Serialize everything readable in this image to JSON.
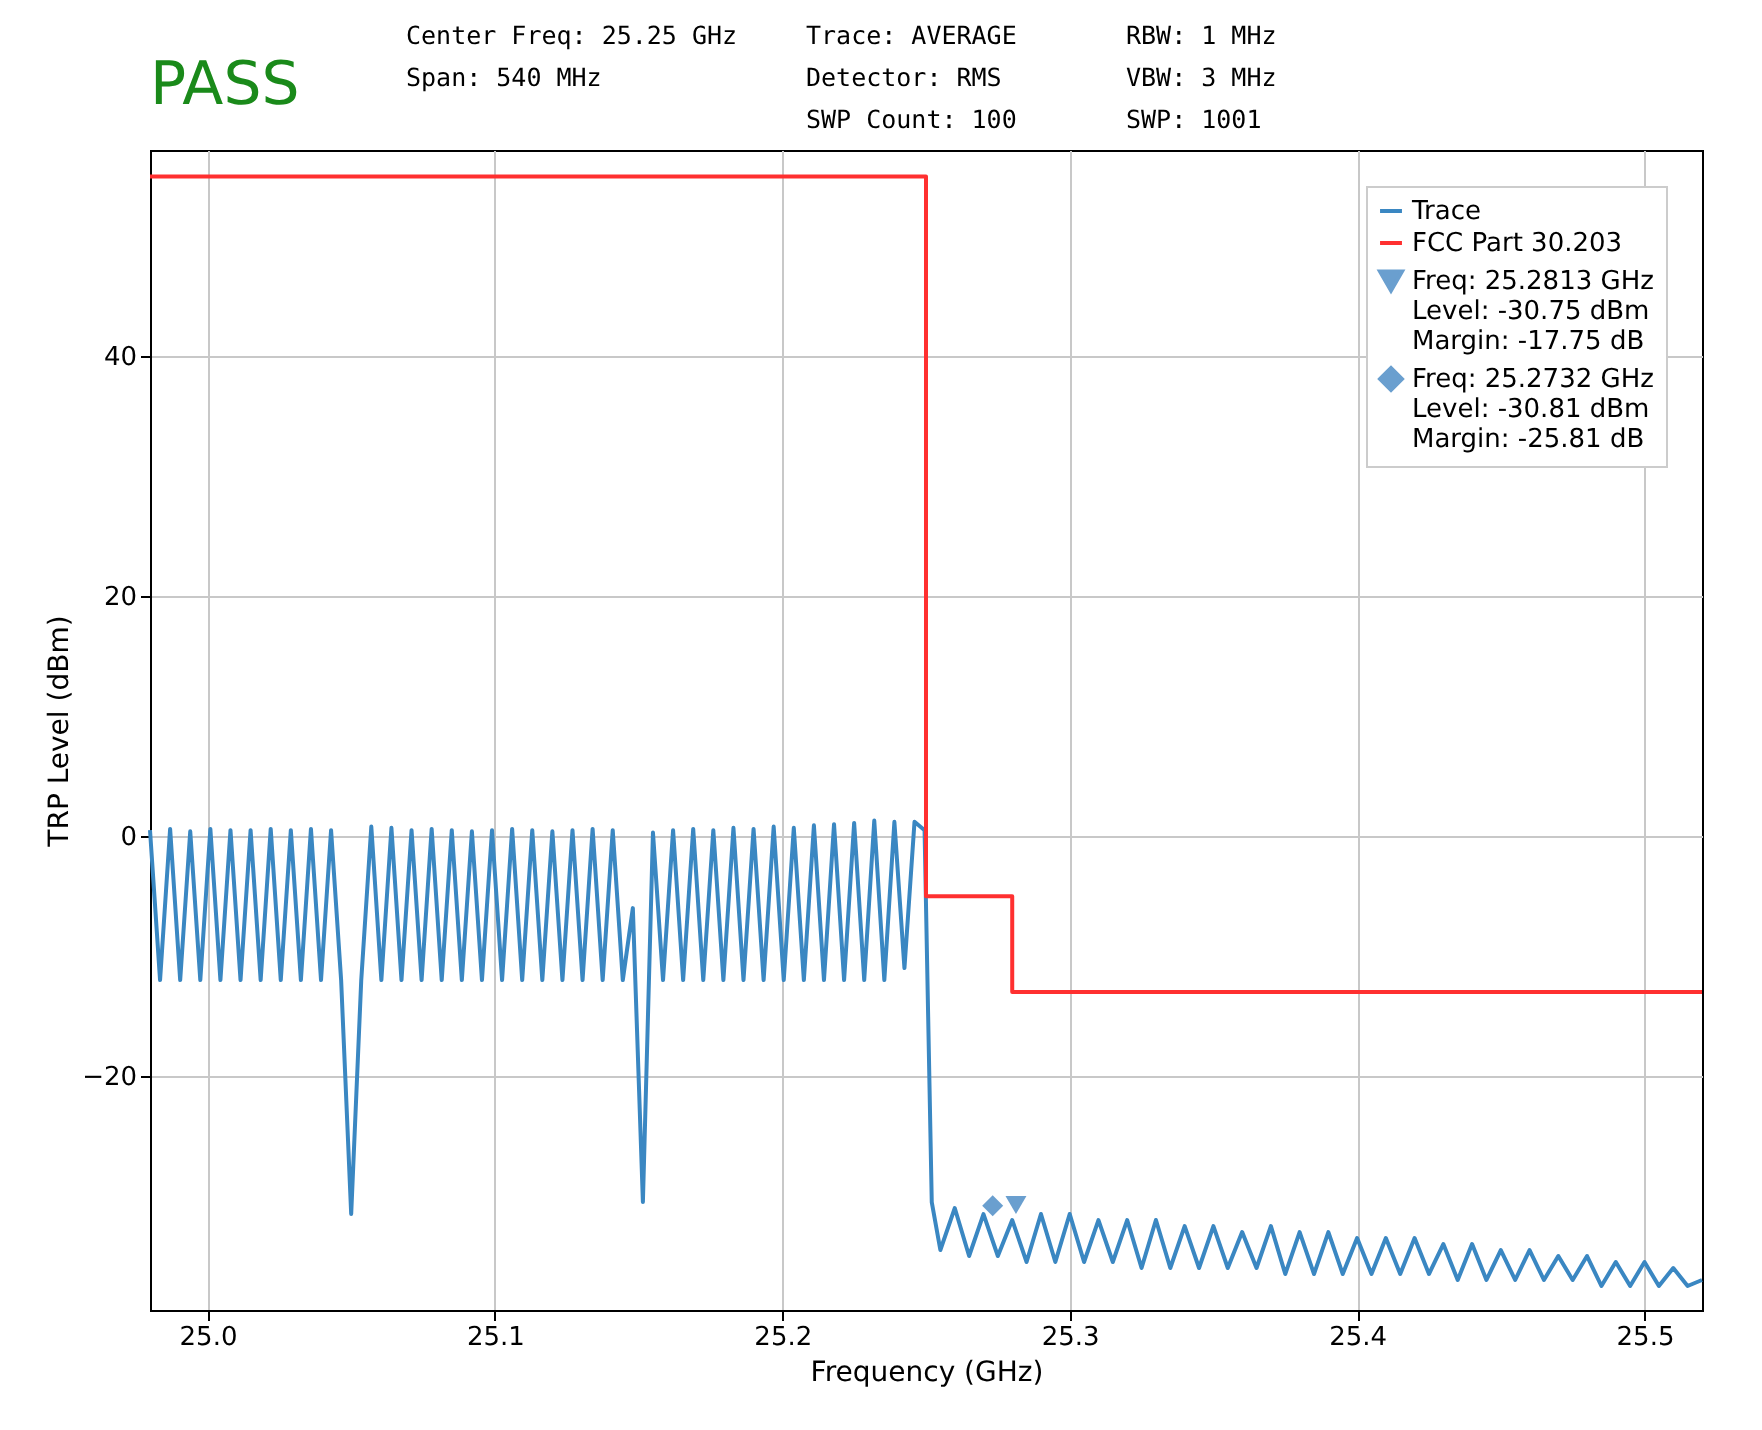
{
  "chart_data": {
    "type": "line",
    "xlabel": "Frequency (GHz)",
    "ylabel": "TRP Level (dBm)",
    "xlim": [
      24.98,
      25.52
    ],
    "ylim": [
      -39.5,
      57.2
    ],
    "xticks": [
      {
        "value": 25,
        "label": "25.0"
      },
      25.1,
      25.2,
      25.3,
      25.4,
      25.5
    ],
    "yticks": [
      {
        "value": -20,
        "label": "−20"
      },
      0,
      20,
      40
    ],
    "grid": true,
    "legend": "top right",
    "annotations": [
      "PASS",
      "Center Freq: 25.25 GHz",
      "Span: 540 MHz",
      "Trace: AVERAGE",
      "Detector: RMS",
      "SWP Count: 100",
      "RBW: 1 MHz",
      "VBW: 3 MHz",
      "SWP: 1001"
    ],
    "series": [
      {
        "name": "Trace",
        "color": "#3a87c2",
        "x": [
          24.98,
          24.9835,
          24.987,
          24.9905,
          24.994,
          24.9975,
          25.001,
          25.0045,
          25.008,
          25.0115,
          25.015,
          25.0185,
          25.022,
          25.0255,
          25.029,
          25.0325,
          25.036,
          25.0395,
          25.043,
          25.0465,
          25.05,
          25.0535,
          25.057,
          25.0605,
          25.064,
          25.0675,
          25.071,
          25.0745,
          25.078,
          25.0815,
          25.085,
          25.0885,
          25.092,
          25.0955,
          25.099,
          25.1025,
          25.106,
          25.1095,
          25.113,
          25.1165,
          25.12,
          25.1235,
          25.127,
          25.1305,
          25.134,
          25.1375,
          25.141,
          25.1445,
          25.148,
          25.1515,
          25.155,
          25.1585,
          25.162,
          25.1655,
          25.169,
          25.1725,
          25.176,
          25.1795,
          25.183,
          25.1865,
          25.19,
          25.1935,
          25.197,
          25.2005,
          25.204,
          25.2075,
          25.211,
          25.2145,
          25.218,
          25.2215,
          25.225,
          25.2285,
          25.232,
          25.2355,
          25.239,
          25.2425,
          25.246,
          25.2495,
          25.252,
          25.255,
          25.26,
          25.265,
          25.27,
          25.275,
          25.28,
          25.285,
          25.29,
          25.295,
          25.3,
          25.305,
          25.31,
          25.315,
          25.32,
          25.325,
          25.33,
          25.335,
          25.34,
          25.345,
          25.35,
          25.355,
          25.36,
          25.365,
          25.37,
          25.375,
          25.38,
          25.385,
          25.39,
          25.395,
          25.4,
          25.405,
          25.41,
          25.415,
          25.42,
          25.425,
          25.43,
          25.435,
          25.44,
          25.445,
          25.45,
          25.455,
          25.46,
          25.465,
          25.47,
          25.475,
          25.48,
          25.485,
          25.49,
          25.495,
          25.5,
          25.505,
          25.51,
          25.515,
          25.52
        ],
        "values": [
          0.5,
          -12,
          0.6,
          -12,
          0.4,
          -12,
          0.6,
          -12,
          0.5,
          -12,
          0.5,
          -12,
          0.6,
          -12,
          0.5,
          -12,
          0.6,
          -12,
          0.5,
          -12,
          -31.5,
          -12,
          0.8,
          -12,
          0.7,
          -12,
          0.5,
          -12,
          0.6,
          -12,
          0.5,
          -12,
          0.4,
          -12,
          0.5,
          -12,
          0.6,
          -12,
          0.5,
          -12,
          0.4,
          -12,
          0.5,
          -12,
          0.6,
          -12,
          0.5,
          -12,
          -6,
          -30.5,
          0.3,
          -12,
          0.5,
          -12,
          0.6,
          -12,
          0.5,
          -12,
          0.7,
          -12,
          0.6,
          -12,
          0.8,
          -12,
          0.7,
          -12,
          0.9,
          -12,
          1,
          -12,
          1.1,
          -12,
          1.3,
          -12,
          1.2,
          -11,
          1.2,
          0.5,
          -30.5,
          -34.5,
          -31,
          -35,
          -31.5,
          -35,
          -32,
          -35.5,
          -31.5,
          -35.5,
          -31.5,
          -35.5,
          -32,
          -35.5,
          -32,
          -36,
          -32,
          -36,
          -32.5,
          -36,
          -32.5,
          -36,
          -33,
          -36,
          -32.5,
          -36.5,
          -33,
          -36.5,
          -33,
          -36.5,
          -33.5,
          -36.5,
          -33.5,
          -36.5,
          -33.5,
          -36.5,
          -34,
          -37,
          -34,
          -37,
          -34.5,
          -37,
          -34.5,
          -37,
          -35,
          -37,
          -35,
          -37.5,
          -35.5,
          -37.5,
          -35.5,
          -37.5,
          -36,
          -37.5,
          -37
        ]
      },
      {
        "name": "FCC Part 30.203",
        "type": "step",
        "color": "#ff3030",
        "x": [
          24.98,
          25.25,
          25.28,
          25.52
        ],
        "values": [
          55,
          -5,
          -13,
          -13
        ]
      },
      {
        "name": "Freq: 25.2813 GHz\nLevel: -30.75 dBm\nMargin: -17.75 dB",
        "type": "scatter",
        "marker": "triangle",
        "color": "#6a9fcf",
        "x": [
          25.2813
        ],
        "values": [
          -30.75
        ]
      },
      {
        "name": "Freq: 25.2732 GHz\nLevel: -30.81 dBm\nMargin: -25.81 dB",
        "type": "scatter",
        "marker": "diamond",
        "color": "#6a9fcf",
        "x": [
          25.2732
        ],
        "values": [
          -30.81
        ]
      }
    ]
  }
}
